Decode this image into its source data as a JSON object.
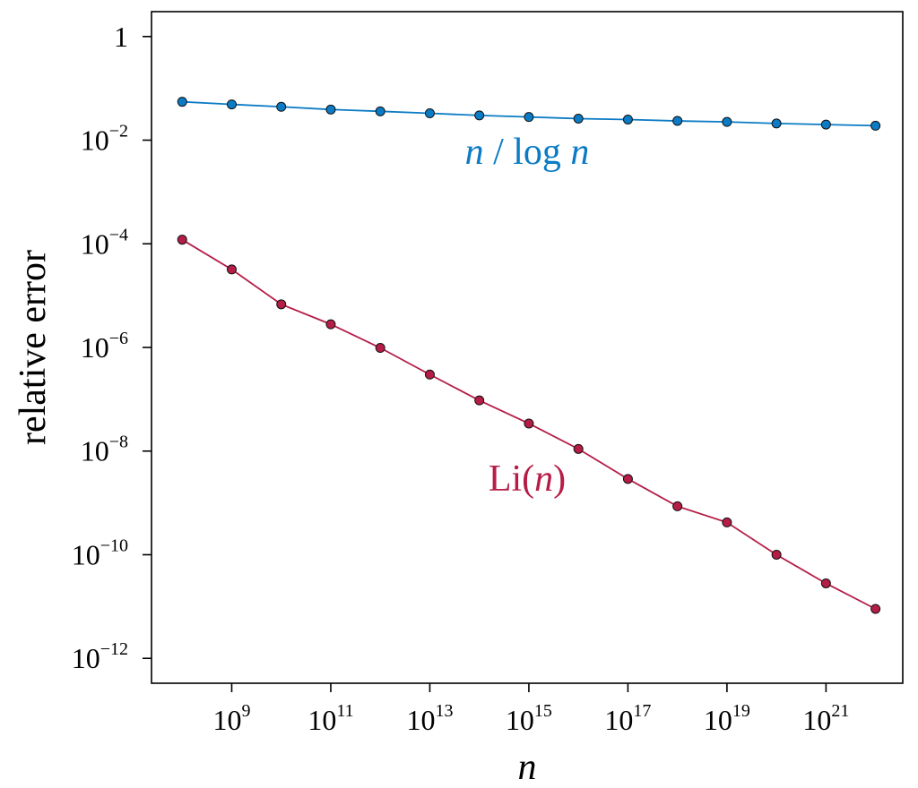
{
  "chart_data": {
    "type": "line",
    "xlabel": "n",
    "ylabel": "relative error",
    "x_scale": "log",
    "y_scale": "log",
    "xlim": [
      100000000,
      10000000000000000000000
    ],
    "ylim": [
      1e-12,
      1
    ],
    "x": [
      100000000.0,
      1000000000.0,
      10000000000.0,
      100000000000.0,
      1000000000000.0,
      10000000000000.0,
      100000000000000.0,
      1000000000000000.0,
      1e+16,
      1e+17,
      1e+18,
      1e+19,
      1e+20,
      1e+21,
      1e+22
    ],
    "grid": false,
    "x_ticks": [
      {
        "base": "10",
        "exp": "9",
        "value": 1000000000.0
      },
      {
        "base": "10",
        "exp": "11",
        "value": 100000000000.0
      },
      {
        "base": "10",
        "exp": "13",
        "value": 10000000000000.0
      },
      {
        "base": "10",
        "exp": "15",
        "value": 1000000000000000.0
      },
      {
        "base": "10",
        "exp": "17",
        "value": 1e+17
      },
      {
        "base": "10",
        "exp": "19",
        "value": 1e+19
      },
      {
        "base": "10",
        "exp": "21",
        "value": 1e+21
      }
    ],
    "y_ticks": [
      {
        "base": "1",
        "exp": "",
        "value": 1
      },
      {
        "base": "10",
        "exp": "−2",
        "value": 0.01
      },
      {
        "base": "10",
        "exp": "−4",
        "value": 0.0001
      },
      {
        "base": "10",
        "exp": "−6",
        "value": 1e-06
      },
      {
        "base": "10",
        "exp": "−8",
        "value": 1e-08
      },
      {
        "base": "10",
        "exp": "−10",
        "value": 1e-10
      },
      {
        "base": "10",
        "exp": "−12",
        "value": 1e-12
      }
    ],
    "series": [
      {
        "name": "n / log n",
        "name_parts": {
          "a": "n",
          "b": " / log ",
          "c": "n"
        },
        "color": "#0a7bc4",
        "values": [
          0.055,
          0.049,
          0.044,
          0.039,
          0.036,
          0.033,
          0.03,
          0.028,
          0.026,
          0.025,
          0.0235,
          0.0225,
          0.021,
          0.02,
          0.019
        ]
      },
      {
        "name": "Li(n)",
        "name_parts": {
          "a": "Li(",
          "b": "n",
          "c": ")"
        },
        "color": "#b51d47",
        "values": [
          0.00012,
          3.2e-05,
          6.8e-06,
          2.8e-06,
          9.8e-07,
          3e-07,
          9.5e-08,
          3.4e-08,
          1.1e-08,
          2.9e-09,
          8.6e-10,
          4.2e-10,
          1e-10,
          2.8e-11,
          9e-12
        ]
      }
    ]
  }
}
